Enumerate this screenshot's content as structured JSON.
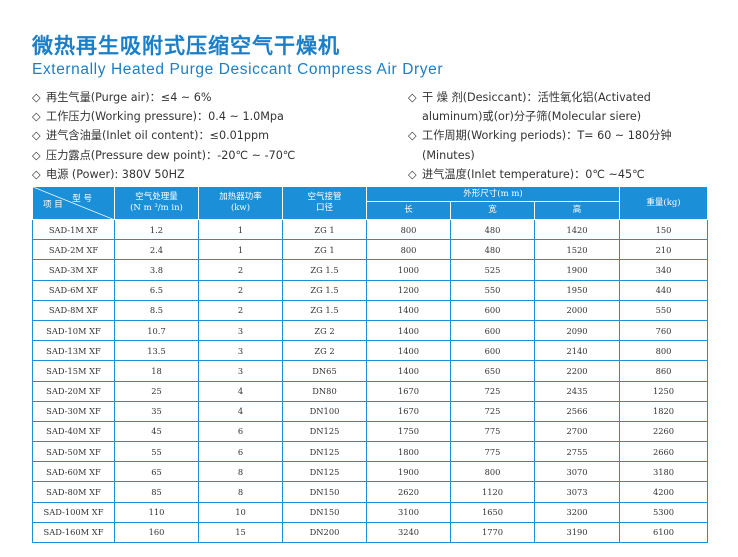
{
  "title_cn": "微热再生吸附式压缩空气干燥机",
  "title_en": "Externally Heated Purge Desiccant Compress Air Dryer",
  "specs_left": [
    {
      "text": "再生气量(Purge air)：≤4 ~ 6%"
    },
    {
      "text": "工作压力(Working pressure)：0.4 ~ 1.0Mpa"
    },
    {
      "text": "进气含油量(Inlet oil content)：≤0.01ppm"
    },
    {
      "text": "压力露点(Pressure dew point)：-20℃ ~ -70℃"
    },
    {
      "text": "电源 (Power): 380V 50HZ"
    }
  ],
  "specs_right": [
    {
      "line1": "干 燥 剂(Desiccant)：活性氧化铝(Activated",
      "line2": "aluminum)或(or)分子筛(Molecular siere)"
    },
    {
      "line1": "工作周期(Working periods)：T= 60 ~ 180分钟",
      "line2": "(Minutes)"
    },
    {
      "line1": "进气温度(Inlet temperature)：0℃ ~45℃",
      "line2": ""
    }
  ],
  "diamond": "◇",
  "table": {
    "corner_model": "型  号",
    "corner_item": "项  目",
    "h_capacity": "空气处理量\n(N m ³/m in)",
    "h_heater": "加热器功率\n(kw)",
    "h_pipe": "空气接管\n口径",
    "h_dims": "外形尺寸(m m)",
    "h_weight": "重量(kg)",
    "h_length": "长",
    "h_width": "宽",
    "h_height": "高",
    "rows": [
      [
        "SAD-1M XF",
        "1.2",
        "1",
        "ZG 1",
        "800",
        "480",
        "1420",
        "150"
      ],
      [
        "SAD-2M XF",
        "2.4",
        "1",
        "ZG 1",
        "800",
        "480",
        "1520",
        "210"
      ],
      [
        "SAD-3M XF",
        "3.8",
        "2",
        "ZG 1.5",
        "1000",
        "525",
        "1900",
        "340"
      ],
      [
        "SAD-6M XF",
        "6.5",
        "2",
        "ZG 1.5",
        "1200",
        "550",
        "1950",
        "440"
      ],
      [
        "SAD-8M XF",
        "8.5",
        "2",
        "ZG 1.5",
        "1400",
        "600",
        "2000",
        "550"
      ],
      [
        "SAD-10M XF",
        "10.7",
        "3",
        "ZG 2",
        "1400",
        "600",
        "2090",
        "760"
      ],
      [
        "SAD-13M XF",
        "13.5",
        "3",
        "ZG 2",
        "1400",
        "600",
        "2140",
        "800"
      ],
      [
        "SAD-15M XF",
        "18",
        "3",
        "DN65",
        "1400",
        "650",
        "2200",
        "860"
      ],
      [
        "SAD-20M XF",
        "25",
        "4",
        "DN80",
        "1670",
        "725",
        "2435",
        "1250"
      ],
      [
        "SAD-30M XF",
        "35",
        "4",
        "DN100",
        "1670",
        "725",
        "2566",
        "1820"
      ],
      [
        "SAD-40M XF",
        "45",
        "6",
        "DN125",
        "1750",
        "775",
        "2700",
        "2260"
      ],
      [
        "SAD-50M XF",
        "55",
        "6",
        "DN125",
        "1800",
        "775",
        "2755",
        "2660"
      ],
      [
        "SAD-60M XF",
        "65",
        "8",
        "DN125",
        "1900",
        "800",
        "3070",
        "3180"
      ],
      [
        "SAD-80M XF",
        "85",
        "8",
        "DN150",
        "2620",
        "1120",
        "3073",
        "4200"
      ],
      [
        "SAD-100M XF",
        "110",
        "10",
        "DN150",
        "3100",
        "1650",
        "3200",
        "5300"
      ],
      [
        "SAD-160M XF",
        "160",
        "15",
        "DN200",
        "3240",
        "1770",
        "3190",
        "6100"
      ]
    ]
  },
  "colors": {
    "accent": "#1a7fc8",
    "header_bg": "#1b8fd8",
    "border": "#1b8fd8"
  }
}
